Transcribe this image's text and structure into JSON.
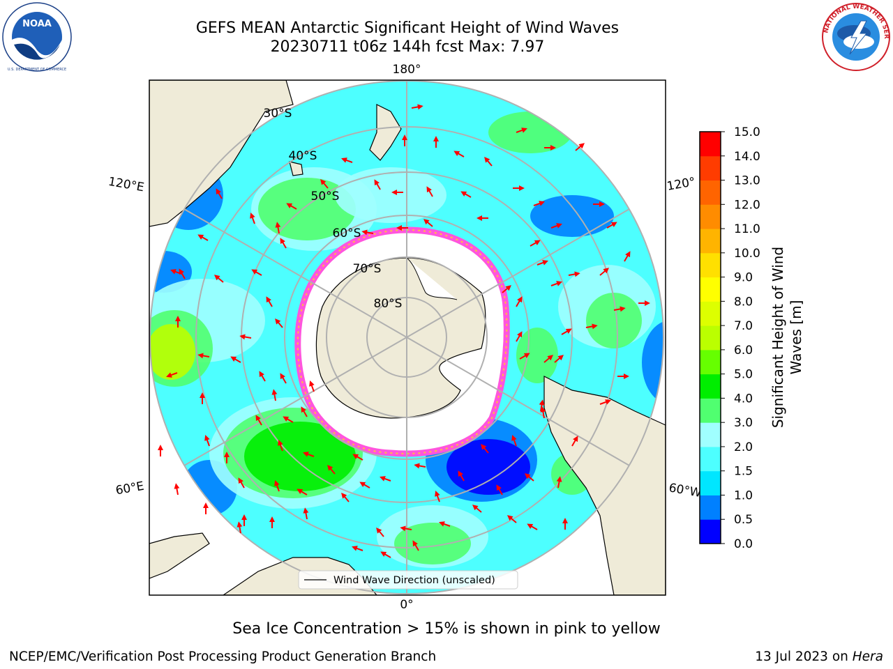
{
  "title_line1": "GEFS MEAN Antarctic Significant Height of Wind Waves",
  "title_line2": "20230711 t06z 144h fcst   Max: 7.97",
  "map": {
    "projection": "south-polar-stereographic",
    "longitude_labels": [
      "180°",
      "120°E",
      "120°",
      "60°E",
      "60°W",
      "0°"
    ],
    "latitude_labels": [
      "30°S",
      "40°S",
      "50°S",
      "60°S",
      "70°S",
      "80°S"
    ],
    "legend_label": "Wind Wave Direction (unscaled)",
    "arrow_color": "#ff0000",
    "land_color": "#efebd8"
  },
  "colorbar": {
    "label": "Significant Height of Wind Waves [m]",
    "ticks": [
      "0.0",
      "0.5",
      "1.0",
      "1.5",
      "2.0",
      "3.0",
      "4.0",
      "5.0",
      "6.0",
      "7.0",
      "8.0",
      "9.0",
      "10.0",
      "11.0",
      "12.0",
      "13.0",
      "14.0",
      "15.0"
    ],
    "colors": [
      "#0000ff",
      "#0080ff",
      "#00e6ff",
      "#4dffff",
      "#a0ffff",
      "#50ff70",
      "#00ee00",
      "#66ff00",
      "#bbff00",
      "#ddff00",
      "#ffff00",
      "#ffe000",
      "#ffb400",
      "#ff8c00",
      "#ff6400",
      "#ff3c00",
      "#ff0000"
    ]
  },
  "caption": "Sea Ice Concentration > 15% is shown in pink to yellow",
  "credit": "NCEP/EMC/Verification Post Processing Product Generation Branch",
  "date_prefix": "13 Jul 2023 on ",
  "date_machine": "Hera",
  "logos": {
    "left_text": "NOAA",
    "right_text": "NATIONAL WEATHER SERVICE"
  }
}
